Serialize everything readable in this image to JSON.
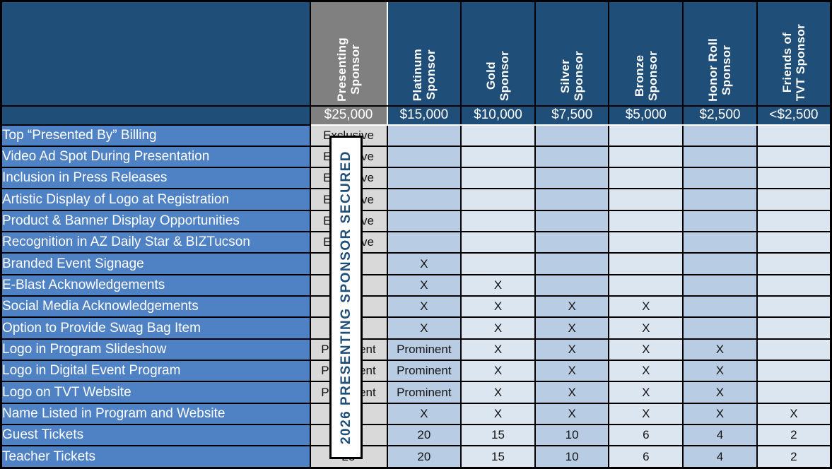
{
  "table": {
    "columns": [
      {
        "id": "presenting-sponsor",
        "label": "Presenting\nSponsor",
        "price": "$25,000"
      },
      {
        "id": "platinum-sponsor",
        "label": "Platinum\nSponsor",
        "price": "$15,000"
      },
      {
        "id": "gold-sponsor",
        "label": "Gold\nSponsor",
        "price": "$10,000"
      },
      {
        "id": "silver-sponsor",
        "label": "Silver\nSponsor",
        "price": "$7,500"
      },
      {
        "id": "bronze-sponsor",
        "label": "Bronze\nSponsor",
        "price": "$5,000"
      },
      {
        "id": "honor-roll-sponsor",
        "label": "Honor Roll\nSponsor",
        "price": "$2,500"
      },
      {
        "id": "friends-of-tvt-sponsor",
        "label": "Friends of\nTVT Sponsor",
        "price": "<$2,500"
      }
    ],
    "rows": [
      {
        "label": "Top “Presented By” Billing",
        "cells": [
          "Exclusive",
          "",
          "",
          "",
          "",
          "",
          ""
        ]
      },
      {
        "label": "Video Ad Spot During Presentation",
        "cells": [
          "Exclusive",
          "",
          "",
          "",
          "",
          "",
          ""
        ]
      },
      {
        "label": "Inclusion in Press Releases",
        "cells": [
          "Exclusive",
          "",
          "",
          "",
          "",
          "",
          ""
        ]
      },
      {
        "label": "Artistic Display of Logo at Registration",
        "cells": [
          "Exclusive",
          "",
          "",
          "",
          "",
          "",
          ""
        ]
      },
      {
        "label": "Product & Banner Display Opportunities",
        "cells": [
          "Exclusive",
          "",
          "",
          "",
          "",
          "",
          ""
        ]
      },
      {
        "label": "Recognition in AZ Daily Star & BIZTucson",
        "cells": [
          "Exclusive",
          "",
          "",
          "",
          "",
          "",
          ""
        ]
      },
      {
        "label": "Branded Event Signage",
        "cells": [
          "",
          "X",
          "",
          "",
          "",
          "",
          ""
        ]
      },
      {
        "label": "E-Blast Acknowledgements",
        "cells": [
          "",
          "X",
          "X",
          "",
          "",
          "",
          ""
        ]
      },
      {
        "label": "Social Media Acknowledgements",
        "cells": [
          "",
          "X",
          "X",
          "X",
          "X",
          "",
          ""
        ]
      },
      {
        "label": "Option to Provide Swag Bag Item",
        "cells": [
          "",
          "X",
          "X",
          "X",
          "X",
          "",
          ""
        ]
      },
      {
        "label": "Logo in Program Slideshow",
        "cells": [
          "Prominent",
          "Prominent",
          "X",
          "X",
          "X",
          "X",
          ""
        ]
      },
      {
        "label": "Logo in Digital Event Program",
        "cells": [
          "Prominent",
          "Prominent",
          "X",
          "X",
          "X",
          "X",
          ""
        ]
      },
      {
        "label": "Logo on TVT Website",
        "cells": [
          "Prominent",
          "Prominent",
          "X",
          "X",
          "X",
          "X",
          ""
        ]
      },
      {
        "label": "Name Listed in Program and Website",
        "cells": [
          "",
          "X",
          "X",
          "X",
          "X",
          "X",
          "X"
        ]
      },
      {
        "label": "Guest Tickets",
        "cells": [
          "",
          "20",
          "15",
          "10",
          "6",
          "4",
          "2"
        ]
      },
      {
        "label": "Teacher Tickets",
        "cells": [
          "25",
          "20",
          "15",
          "10",
          "6",
          "4",
          "2"
        ]
      }
    ]
  },
  "banner": {
    "text": "2026 PRESENTING SPONSOR SECURED"
  },
  "colors": {
    "header_navy": "#1F4E79",
    "row_label_blue": "#4E82C4",
    "band_medium_blue": "#B8CCE4",
    "band_light_blue": "#DCE6F1",
    "presenting_header_gray": "#808080",
    "presenting_body_gray": "#D9D9D9",
    "banner_text_navy": "#1F4E79"
  }
}
